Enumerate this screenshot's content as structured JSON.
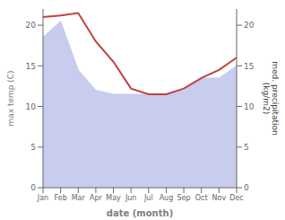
{
  "chart_data": {
    "type": "line",
    "xlabel": "date (month)",
    "ylabel": "max temp (C)",
    "y2label": "med. precipitation\n(kg/m2)",
    "categories": [
      "Jan",
      "Feb",
      "Mar",
      "Apr",
      "May",
      "Jun",
      "Jul",
      "Aug",
      "Sep",
      "Oct",
      "Nov",
      "Dec"
    ],
    "series": [
      {
        "type": "area",
        "axis": "y2",
        "color": "#c8ccee",
        "values": [
          18.5,
          20.5,
          14.5,
          12.0,
          11.5,
          11.5,
          11.5,
          11.5,
          12.0,
          13.5,
          13.5,
          15.0
        ]
      },
      {
        "type": "line",
        "color": "#c04040",
        "values": [
          21.0,
          21.2,
          21.5,
          18.0,
          15.5,
          12.2,
          11.5,
          11.5,
          12.2,
          13.5,
          14.5,
          16.0
        ]
      }
    ],
    "ylim": [
      0,
      22
    ],
    "yticks": [
      0,
      5,
      10,
      15,
      20
    ],
    "y2lim": [
      0,
      22
    ],
    "y2ticks": [
      0,
      5,
      10,
      15,
      20
    ]
  }
}
